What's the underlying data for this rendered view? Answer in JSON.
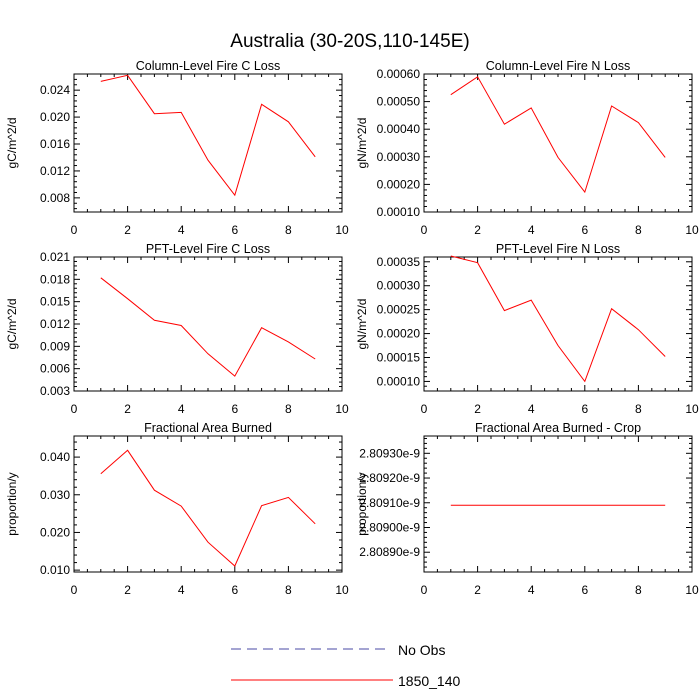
{
  "title": "Australia (30-20S,110-145E)",
  "colors": {
    "model": "#ff0000",
    "obs": "#4a4aa6",
    "axis": "#000000"
  },
  "legend": [
    {
      "label": "No Obs",
      "style": "dashed",
      "color": "#4a4aa6"
    },
    {
      "label": "1850_140",
      "style": "solid",
      "color": "#ff0000"
    }
  ],
  "chart_data": [
    {
      "type": "line",
      "title": "Column-Level Fire C Loss",
      "ylabel": "gC/m^2/d",
      "xlim": [
        0,
        10
      ],
      "ylim": [
        0.0059,
        0.0264
      ],
      "xticks": [
        0,
        2,
        4,
        6,
        8,
        10
      ],
      "yticks": [
        0.008,
        0.012,
        0.016,
        0.02,
        0.024
      ],
      "ytick_labels": [
        "0.008",
        "0.012",
        "0.016",
        "0.020",
        "0.024"
      ],
      "series": [
        {
          "name": "1850_140",
          "x": [
            1,
            2,
            3,
            4,
            5,
            6,
            7,
            8,
            9
          ],
          "values": [
            0.0253,
            0.0262,
            0.0205,
            0.0207,
            0.0136,
            0.0084,
            0.0219,
            0.0193,
            0.0141
          ]
        }
      ]
    },
    {
      "type": "line",
      "title": "Column-Level Fire N Loss",
      "ylabel": "gN/m^2/d",
      "xlim": [
        0,
        10
      ],
      "ylim": [
        0.0001,
        0.0006
      ],
      "xticks": [
        0,
        2,
        4,
        6,
        8,
        10
      ],
      "yticks": [
        0.0001,
        0.0002,
        0.0003,
        0.0004,
        0.0005,
        0.0006
      ],
      "ytick_labels": [
        "0.00010",
        "0.00020",
        "0.00030",
        "0.00040",
        "0.00050",
        "0.00060"
      ],
      "series": [
        {
          "name": "1850_140",
          "x": [
            1,
            2,
            3,
            4,
            5,
            6,
            7,
            8,
            9
          ],
          "values": [
            0.000525,
            0.00059,
            0.000418,
            0.000477,
            0.000298,
            0.000172,
            0.000484,
            0.000424,
            0.000298
          ]
        }
      ]
    },
    {
      "type": "line",
      "title": "PFT-Level Fire C Loss",
      "ylabel": "gC/m^2/d",
      "xlim": [
        0,
        10
      ],
      "ylim": [
        0.003,
        0.021
      ],
      "xticks": [
        0,
        2,
        4,
        6,
        8,
        10
      ],
      "yticks": [
        0.003,
        0.006,
        0.009,
        0.012,
        0.015,
        0.018,
        0.021
      ],
      "ytick_labels": [
        "0.003",
        "0.006",
        "0.009",
        "0.012",
        "0.015",
        "0.018",
        "0.021"
      ],
      "series": [
        {
          "name": "1850_140",
          "x": [
            1,
            2,
            3,
            4,
            5,
            6,
            7,
            8,
            9
          ],
          "values": [
            0.0182,
            0.0154,
            0.0125,
            0.0118,
            0.008,
            0.005,
            0.0115,
            0.0096,
            0.0073
          ]
        }
      ]
    },
    {
      "type": "line",
      "title": "PFT-Level Fire N Loss",
      "ylabel": "gN/m^2/d",
      "xlim": [
        0,
        10
      ],
      "ylim": [
        8e-05,
        0.00036
      ],
      "xticks": [
        0,
        2,
        4,
        6,
        8,
        10
      ],
      "yticks": [
        0.0001,
        0.00015,
        0.0002,
        0.00025,
        0.0003,
        0.00035
      ],
      "ytick_labels": [
        "0.00010",
        "0.00015",
        "0.00020",
        "0.00025",
        "0.00030",
        "0.00035"
      ],
      "series": [
        {
          "name": "1850_140",
          "x": [
            1,
            2,
            3,
            4,
            5,
            6,
            7,
            8,
            9
          ],
          "values": [
            0.000362,
            0.000348,
            0.000248,
            0.00027,
            0.000175,
            0.0001,
            0.000252,
            0.000208,
            0.000152
          ]
        }
      ]
    },
    {
      "type": "line",
      "title": "Fractional Area Burned",
      "ylabel": "proportion/y",
      "xlim": [
        0,
        10
      ],
      "ylim": [
        0.0095,
        0.0456
      ],
      "xticks": [
        0,
        2,
        4,
        6,
        8,
        10
      ],
      "yticks": [
        0.01,
        0.02,
        0.03,
        0.04
      ],
      "ytick_labels": [
        "0.010",
        "0.020",
        "0.030",
        "0.040"
      ],
      "series": [
        {
          "name": "1850_140",
          "x": [
            1,
            2,
            3,
            4,
            5,
            6,
            7,
            8,
            9
          ],
          "values": [
            0.0356,
            0.0418,
            0.0312,
            0.027,
            0.0174,
            0.0111,
            0.0271,
            0.0293,
            0.0223
          ]
        }
      ]
    },
    {
      "type": "line",
      "title": "Fractional Area Burned - Crop",
      "ylabel": "proportion/y",
      "xlim": [
        0,
        10
      ],
      "ylim": [
        2.80882e-09,
        2.80937e-09
      ],
      "xticks": [
        0,
        2,
        4,
        6,
        8,
        10
      ],
      "yticks": [
        2.8089e-09,
        2.809e-09,
        2.8091e-09,
        2.8092e-09,
        2.8093e-09
      ],
      "ytick_labels": [
        "2.80890e-9",
        "2.80900e-9",
        "2.80910e-9",
        "2.80920e-9",
        "2.80930e-9"
      ],
      "series": [
        {
          "name": "1850_140",
          "x": [
            1,
            2,
            3,
            4,
            5,
            6,
            7,
            8,
            9
          ],
          "values": [
            2.80909e-09,
            2.80909e-09,
            2.80909e-09,
            2.80909e-09,
            2.80909e-09,
            2.80909e-09,
            2.80909e-09,
            2.80909e-09,
            2.80909e-09
          ]
        }
      ]
    }
  ]
}
